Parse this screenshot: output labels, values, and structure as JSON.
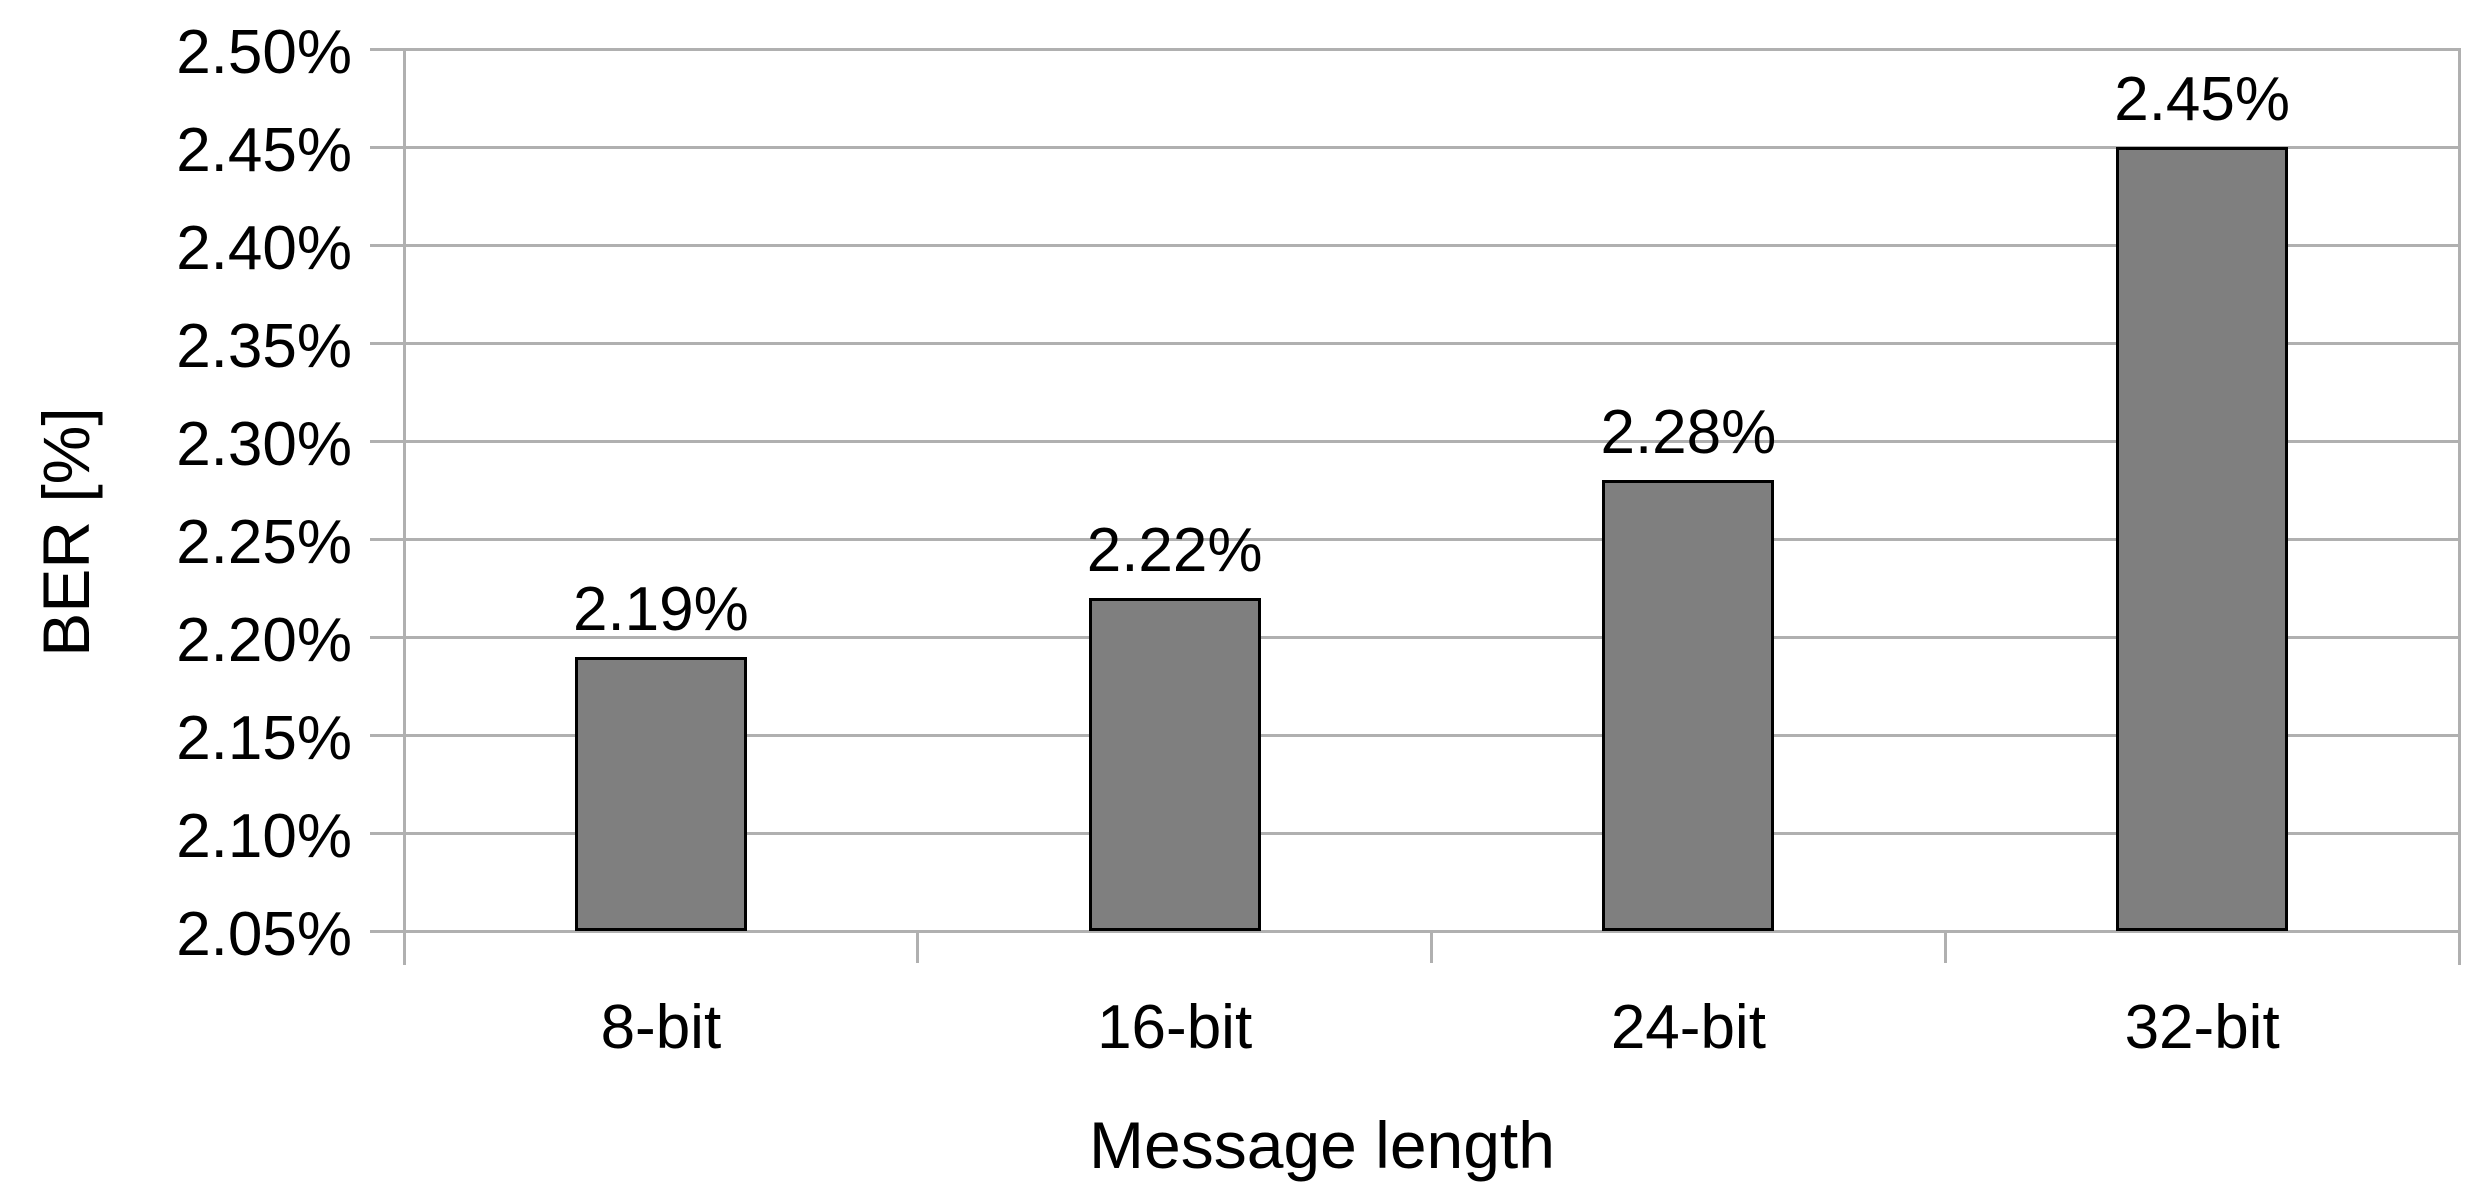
{
  "chart_data": {
    "type": "bar",
    "title": "",
    "xlabel": "Message length",
    "ylabel": "BER [%]",
    "categories": [
      "8-bit",
      "16-bit",
      "24-bit",
      "32-bit"
    ],
    "values": [
      2.19,
      2.22,
      2.28,
      2.45
    ],
    "value_labels": [
      "2.19%",
      "2.22%",
      "2.28%",
      "2.45%"
    ],
    "ylim": [
      2.05,
      2.5
    ],
    "ytick_step": 0.05,
    "ytick_labels": [
      "2.05%",
      "2.10%",
      "2.15%",
      "2.20%",
      "2.25%",
      "2.30%",
      "2.35%",
      "2.40%",
      "2.45%",
      "2.50%"
    ],
    "grid": true,
    "legend": "none",
    "colors": {
      "bar_fill": "#7f7f7f",
      "bar_border": "#000000",
      "grid_line": "#b0b0b0",
      "text": "#000000",
      "background": "#ffffff"
    }
  }
}
